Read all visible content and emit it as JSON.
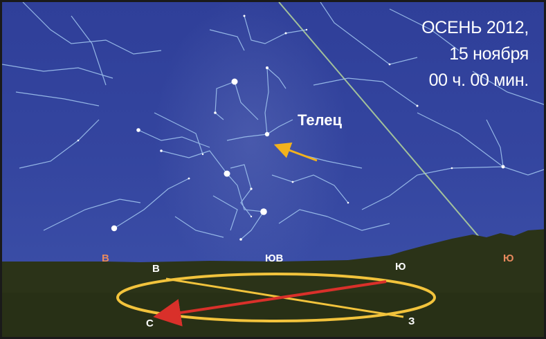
{
  "caption": {
    "line1": "ОСЕНЬ 2012,",
    "line2": "15 ноября",
    "line3": "00 ч. 00 мин."
  },
  "constellation_label": "Телец",
  "horizon_labels": {
    "east": "В",
    "southeast": "ЮВ",
    "south": "Ю"
  },
  "compass_labels": {
    "east": "В",
    "south": "Ю",
    "north": "С",
    "west": "З"
  },
  "colors": {
    "sky": "#34459f",
    "ground": "#2b3318",
    "constellation_lines": "#9fc3ee",
    "ecliptic_line": "#b6d79a",
    "ellipse": "#f2c33c",
    "meridian_arrow": "#d9302a",
    "pointer_arrow": "#f2b21d",
    "horizon_label": "#e98a5e"
  }
}
